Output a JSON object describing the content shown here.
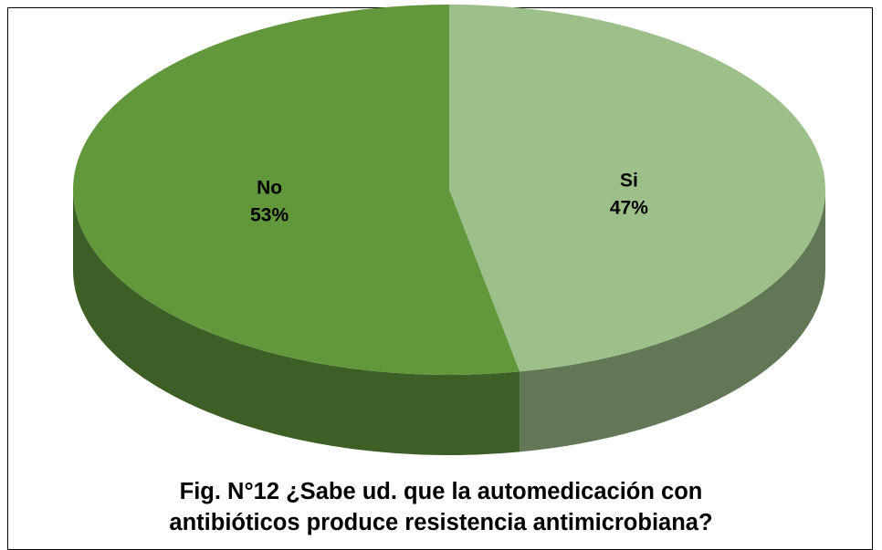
{
  "chart_data": {
    "type": "pie",
    "title": "Fig. N°12 ¿Sabe ud. que la automedicación con antibióticos produce resistencia antimicrobiana?",
    "categories": [
      "Si",
      "No"
    ],
    "values": [
      47,
      53
    ],
    "value_labels": [
      "47%",
      "53%"
    ],
    "colors": [
      "#9dc08b",
      "#62973b"
    ]
  }
}
